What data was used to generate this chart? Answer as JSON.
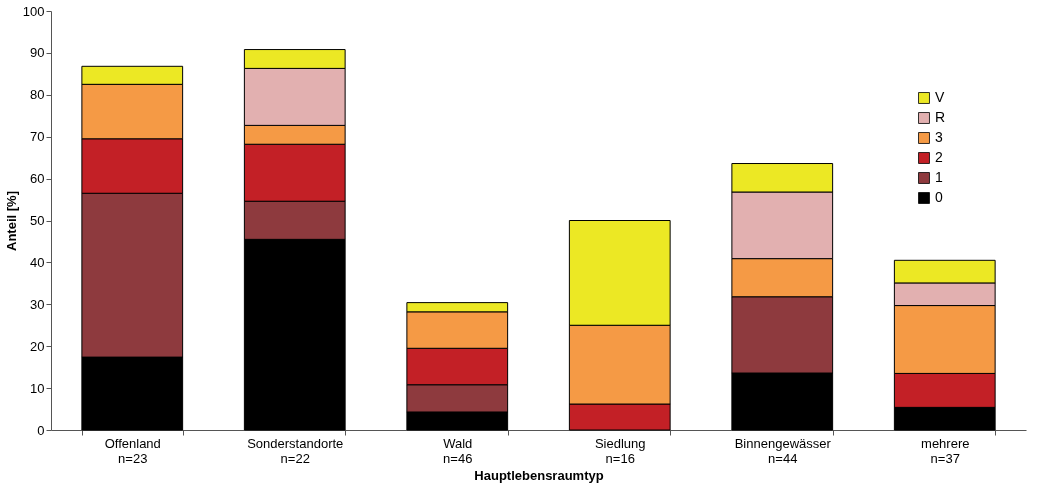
{
  "chart_data": {
    "type": "bar",
    "stacked": true,
    "xlabel": "Hauptlebensraumtyp",
    "ylabel": "Anteil [%]",
    "categories": [
      "Offenland\nn=23",
      "Sonderstandorte\nn=22",
      "Wald\nn=46",
      "Siedlung\nn=16",
      "Binnengewässer\nn=44",
      "mehrere\nn=37"
    ],
    "series": [
      {
        "name": "0",
        "color": "#000000",
        "values": [
          17.4,
          45.5,
          4.3,
          null,
          13.6,
          5.4
        ]
      },
      {
        "name": "1",
        "color": "#8e3a3e",
        "values": [
          39.1,
          9.1,
          6.5,
          null,
          18.2,
          null
        ]
      },
      {
        "name": "2",
        "color": "#c32026",
        "values": [
          13.0,
          13.6,
          8.7,
          6.2,
          null,
          8.1
        ]
      },
      {
        "name": "3",
        "color": "#f59a45",
        "values": [
          13.0,
          4.5,
          8.7,
          18.8,
          9.1,
          16.2
        ]
      },
      {
        "name": "R",
        "color": "#e2b0b0",
        "values": [
          null,
          13.6,
          null,
          null,
          15.9,
          5.4
        ]
      },
      {
        "name": "V",
        "color": "#ece824",
        "values": [
          4.3,
          4.5,
          2.2,
          25.0,
          6.8,
          5.4
        ]
      }
    ],
    "ylim": [
      0,
      100
    ],
    "yticks": [
      0,
      10,
      20,
      30,
      40,
      50,
      60,
      70,
      80,
      90,
      100
    ],
    "grid": false,
    "legend": "top right"
  }
}
